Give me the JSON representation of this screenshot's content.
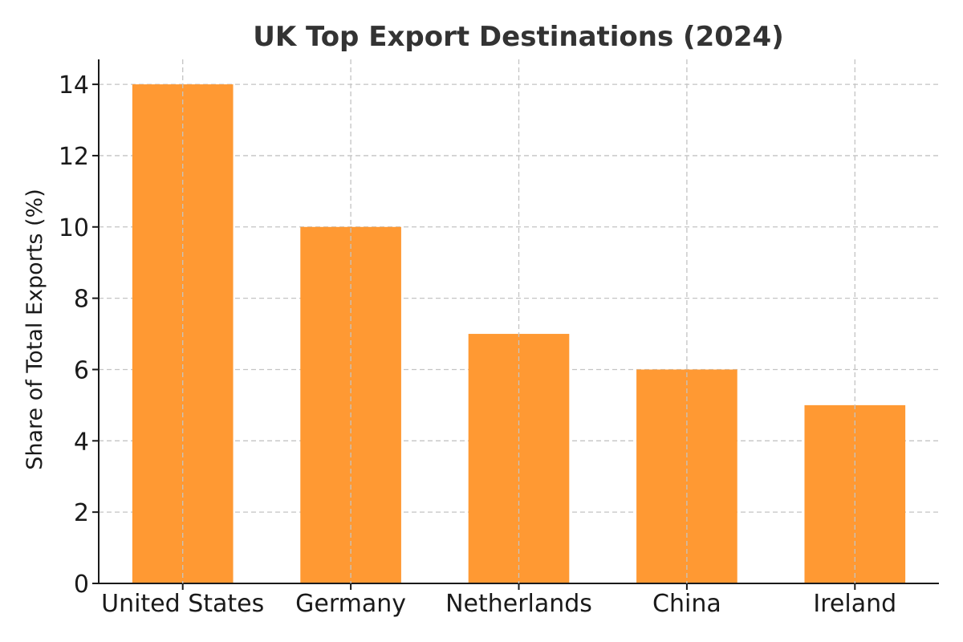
{
  "chart_data": {
    "type": "bar",
    "title": "UK Top Export Destinations (2024)",
    "xlabel": "",
    "ylabel": "Share of Total Exports (%)",
    "categories": [
      "United States",
      "Germany",
      "Netherlands",
      "China",
      "Ireland"
    ],
    "values": [
      14,
      10,
      7,
      6,
      5
    ],
    "ylim": [
      0,
      14.7
    ],
    "yticks": [
      0,
      2,
      4,
      6,
      8,
      10,
      12,
      14
    ],
    "grid": true,
    "bar_color": "#ff9933"
  }
}
